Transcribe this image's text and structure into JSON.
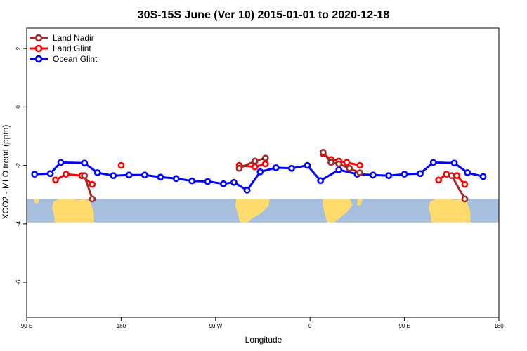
{
  "chart_data": {
    "type": "line",
    "title": "30S-15S June (Ver 10)   2015-01-01 to 2020-12-18",
    "xlabel": "Longitude",
    "ylabel": "XCO2 - MLO trend (ppm)",
    "xlim": [
      30,
      390
    ],
    "ylim": [
      -7.2,
      2.7
    ],
    "x_ticks": [
      {
        "value": 30,
        "label": "90 E"
      },
      {
        "value": 102,
        "label": "180"
      },
      {
        "value": 174,
        "label": "90 W"
      },
      {
        "value": 246,
        "label": "0"
      },
      {
        "value": 318,
        "label": "90 E"
      },
      {
        "value": 390,
        "label": "180"
      }
    ],
    "y_ticks": [
      {
        "value": 2,
        "label": "2"
      },
      {
        "value": 0,
        "label": "0"
      },
      {
        "value": -2,
        "label": "-2"
      },
      {
        "value": -4,
        "label": "-4"
      },
      {
        "value": -6,
        "label": "-6"
      }
    ],
    "legend": {
      "position": "top-left",
      "entries": [
        {
          "name": "Land Nadir",
          "color": "#a52a2a"
        },
        {
          "name": "Land Glint",
          "color": "#ff0000"
        },
        {
          "name": "Ocean Glint",
          "color": "#0000ff"
        }
      ]
    },
    "map_band": {
      "y_top": -3.15,
      "y_bottom": -3.95,
      "ocean_color": "#a7bfde",
      "land_color": "#ffdb6e"
    },
    "series": [
      {
        "name": "Land Nadir",
        "color": "#a52a2a",
        "segments": [
          [
            [
              74,
              -2.35
            ],
            [
              80,
              -3.15
            ]
          ],
          [
            [
              192,
              -2.1
            ],
            [
              204,
              -1.85
            ],
            [
              212,
              -1.75
            ]
          ],
          [
            [
              256,
              -1.55
            ],
            [
              262,
              -1.9
            ],
            [
              268,
              -1.95
            ],
            [
              276,
              -2.1
            ],
            [
              284,
              -2.25
            ]
          ],
          [
            [
              354,
              -2.35
            ],
            [
              364,
              -3.15
            ]
          ]
        ]
      },
      {
        "name": "Land Glint",
        "color": "#ff0000",
        "segments": [
          [
            [
              52,
              -2.5
            ],
            [
              60,
              -2.3
            ],
            [
              72,
              -2.35
            ],
            [
              80,
              -2.65
            ]
          ],
          [
            [
              102,
              -2.0
            ]
          ],
          [
            [
              192,
              -2.0
            ],
            [
              204,
              -2.05
            ],
            [
              212,
              -1.95
            ]
          ],
          [
            [
              256,
              -1.6
            ],
            [
              262,
              -1.8
            ],
            [
              268,
              -1.85
            ],
            [
              274,
              -1.9
            ],
            [
              284,
              -2.0
            ]
          ],
          [
            [
              344,
              -2.5
            ],
            [
              350,
              -2.3
            ],
            [
              358,
              -2.35
            ],
            [
              364,
              -2.65
            ]
          ]
        ]
      },
      {
        "name": "Ocean Glint",
        "color": "#0000ff",
        "segments": [
          [
            [
              36,
              -2.3
            ],
            [
              48,
              -2.28
            ],
            [
              56,
              -1.9
            ],
            [
              74,
              -1.92
            ],
            [
              84,
              -2.25
            ],
            [
              96,
              -2.35
            ],
            [
              108,
              -2.33
            ],
            [
              120,
              -2.33
            ],
            [
              132,
              -2.4
            ],
            [
              144,
              -2.45
            ],
            [
              156,
              -2.53
            ],
            [
              168,
              -2.55
            ],
            [
              180,
              -2.63
            ],
            [
              188,
              -2.58
            ],
            [
              198,
              -2.85
            ],
            [
              208,
              -2.22
            ],
            [
              220,
              -2.08
            ],
            [
              232,
              -2.1
            ],
            [
              244,
              -2.0
            ],
            [
              254,
              -2.52
            ],
            [
              268,
              -2.15
            ],
            [
              282,
              -2.3
            ],
            [
              294,
              -2.33
            ],
            [
              306,
              -2.35
            ],
            [
              318,
              -2.3
            ],
            [
              330,
              -2.28
            ],
            [
              340,
              -1.9
            ],
            [
              356,
              -1.92
            ],
            [
              366,
              -2.25
            ],
            [
              378,
              -2.38
            ]
          ]
        ]
      }
    ]
  }
}
